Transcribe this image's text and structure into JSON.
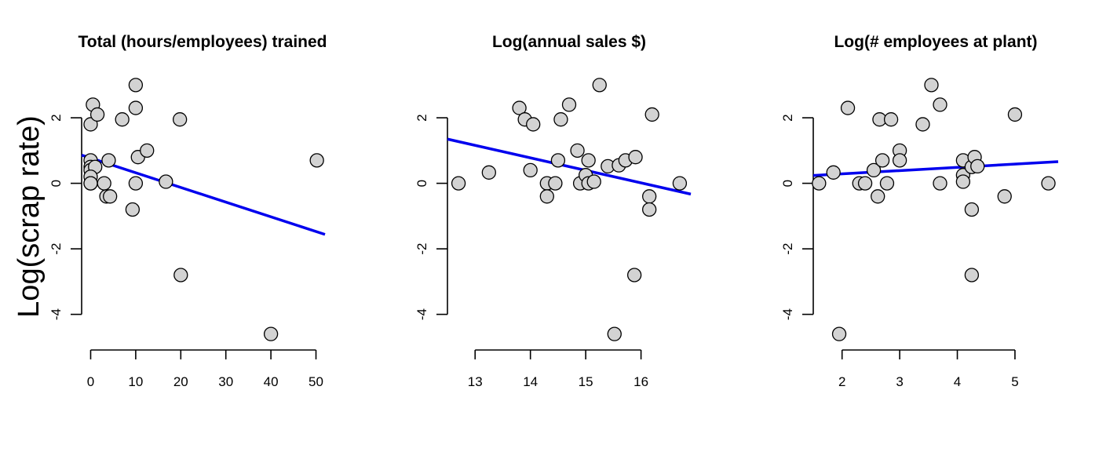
{
  "figure": {
    "shared_ylabel": "Log(scrap rate)"
  },
  "chart_data": [
    {
      "type": "scatter",
      "title": "Total (hours/employees) trained",
      "xlabel": "",
      "ylabel": "Log(scrap rate)",
      "xlim": [
        -2,
        52
      ],
      "ylim": [
        -4.8,
        3.2
      ],
      "xticks": [
        0,
        10,
        20,
        30,
        40,
        50
      ],
      "yticks": [
        -4,
        -2,
        0,
        2
      ],
      "point_color": "#d3d3d3",
      "line_color": "#0000ee",
      "fit_line": {
        "x": [
          -2,
          52
        ],
        "y": [
          0.86,
          -1.56
        ]
      },
      "points": [
        [
          0,
          1.8
        ],
        [
          0.5,
          2.4
        ],
        [
          1.5,
          2.1
        ],
        [
          0,
          0.7
        ],
        [
          0,
          0.5
        ],
        [
          0,
          0.4
        ],
        [
          1,
          0.5
        ],
        [
          0,
          0.2
        ],
        [
          0,
          0.0
        ],
        [
          0,
          0.0
        ],
        [
          3,
          0.0
        ],
        [
          3.5,
          -0.4
        ],
        [
          4.3,
          -0.4
        ],
        [
          4,
          0.7
        ],
        [
          7,
          1.95
        ],
        [
          10,
          3.0
        ],
        [
          10,
          2.3
        ],
        [
          10.5,
          0.8
        ],
        [
          12.5,
          1.0
        ],
        [
          10,
          0.0
        ],
        [
          9.3,
          -0.8
        ],
        [
          16.7,
          0.05
        ],
        [
          19.8,
          1.95
        ],
        [
          20,
          -2.8
        ],
        [
          40,
          -4.6
        ],
        [
          50.2,
          0.7
        ]
      ]
    },
    {
      "type": "scatter",
      "title": "Log(annual sales $)",
      "xlabel": "",
      "ylabel": "",
      "xlim": [
        12.5,
        16.9
      ],
      "ylim": [
        -4.8,
        3.2
      ],
      "xticks": [
        13,
        14,
        15,
        16
      ],
      "yticks": [
        -4,
        -2,
        0,
        2
      ],
      "point_color": "#d3d3d3",
      "line_color": "#0000ee",
      "fit_line": {
        "x": [
          12.5,
          16.9
        ],
        "y": [
          1.35,
          -0.33
        ]
      },
      "points": [
        [
          12.7,
          0.0
        ],
        [
          13.25,
          0.33
        ],
        [
          13.8,
          2.3
        ],
        [
          13.9,
          1.95
        ],
        [
          14.05,
          1.8
        ],
        [
          14.0,
          0.4
        ],
        [
          14.3,
          0.0
        ],
        [
          14.3,
          -0.4
        ],
        [
          14.45,
          0.0
        ],
        [
          14.5,
          0.7
        ],
        [
          14.55,
          1.95
        ],
        [
          14.7,
          2.4
        ],
        [
          14.85,
          1.0
        ],
        [
          14.9,
          0.0
        ],
        [
          15.05,
          0.7
        ],
        [
          15.0,
          0.25
        ],
        [
          15.05,
          0.0
        ],
        [
          15.15,
          0.05
        ],
        [
          15.25,
          3.0
        ],
        [
          15.4,
          0.52
        ],
        [
          15.6,
          0.55
        ],
        [
          15.72,
          0.7
        ],
        [
          15.9,
          0.8
        ],
        [
          15.88,
          -2.8
        ],
        [
          15.52,
          -4.6
        ],
        [
          16.15,
          -0.4
        ],
        [
          16.15,
          -0.8
        ],
        [
          16.2,
          2.1
        ],
        [
          16.7,
          0.0
        ]
      ]
    },
    {
      "type": "scatter",
      "title": "Log(# employees at plant)",
      "xlabel": "",
      "ylabel": "",
      "xlim": [
        1.5,
        5.75
      ],
      "ylim": [
        -4.8,
        3.2
      ],
      "xticks": [
        2,
        3,
        4,
        5
      ],
      "yticks": [
        -4,
        -2,
        0,
        2
      ],
      "point_color": "#d3d3d3",
      "line_color": "#0000ee",
      "fit_line": {
        "x": [
          1.5,
          5.75
        ],
        "y": [
          0.24,
          0.66
        ]
      },
      "points": [
        [
          1.6,
          0.0
        ],
        [
          1.85,
          0.33
        ],
        [
          1.95,
          -4.6
        ],
        [
          2.1,
          2.3
        ],
        [
          2.3,
          0.0
        ],
        [
          2.4,
          0.0
        ],
        [
          2.55,
          0.4
        ],
        [
          2.62,
          -0.4
        ],
        [
          2.65,
          1.95
        ],
        [
          2.7,
          0.7
        ],
        [
          2.78,
          0.0
        ],
        [
          2.85,
          1.95
        ],
        [
          3.0,
          1.0
        ],
        [
          3.0,
          0.7
        ],
        [
          3.4,
          1.8
        ],
        [
          3.55,
          3.0
        ],
        [
          3.7,
          2.4
        ],
        [
          3.7,
          0.0
        ],
        [
          4.1,
          0.7
        ],
        [
          4.1,
          0.25
        ],
        [
          4.1,
          0.05
        ],
        [
          4.25,
          0.5
        ],
        [
          4.3,
          0.8
        ],
        [
          4.35,
          0.52
        ],
        [
          4.25,
          -0.8
        ],
        [
          4.25,
          -2.8
        ],
        [
          4.82,
          -0.4
        ],
        [
          5.0,
          2.1
        ],
        [
          5.58,
          0.0
        ]
      ]
    }
  ]
}
